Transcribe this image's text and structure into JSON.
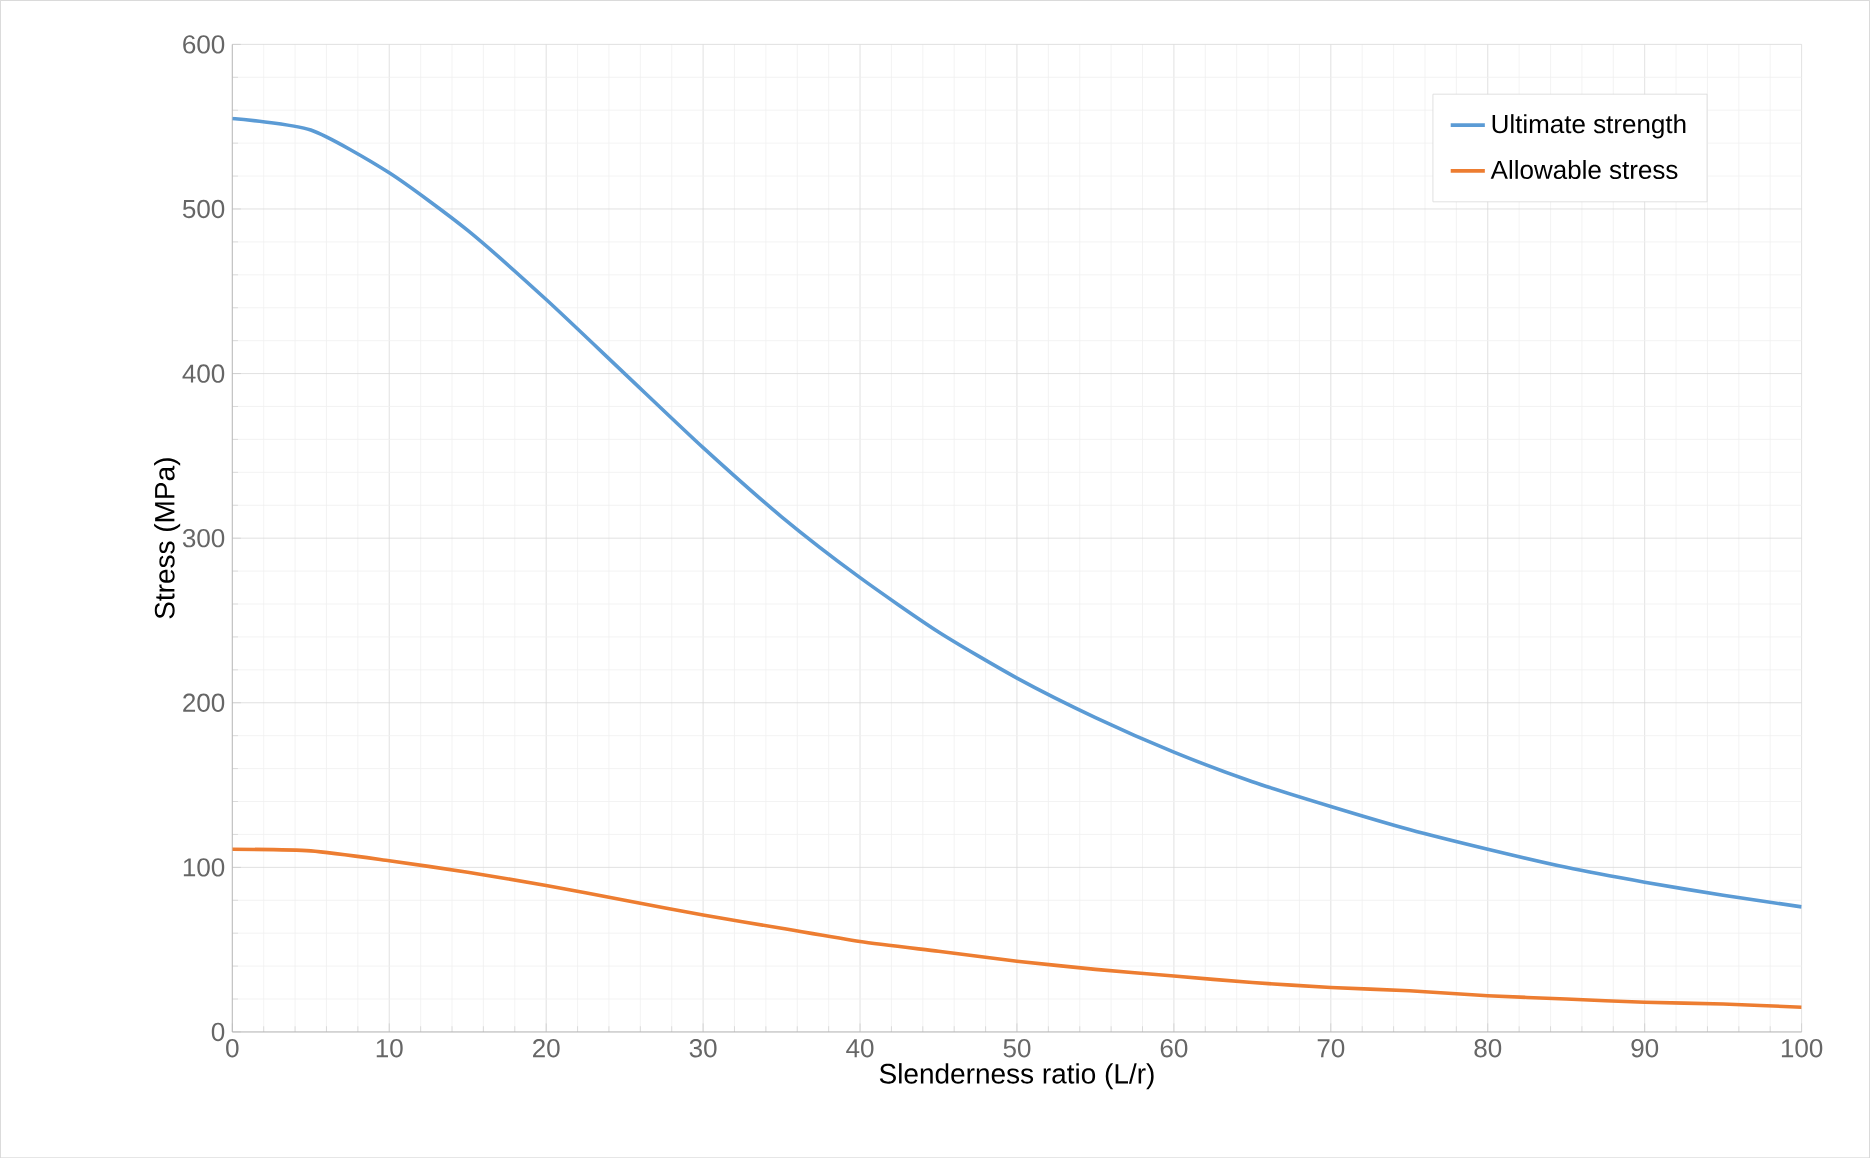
{
  "chart_data": {
    "type": "line",
    "xlabel": "Slenderness ratio (L/r)",
    "ylabel": "Stress (MPa)",
    "x": [
      0,
      5,
      10,
      15,
      20,
      25,
      30,
      35,
      40,
      45,
      50,
      55,
      60,
      65,
      70,
      75,
      80,
      85,
      90,
      95,
      100
    ],
    "series": [
      {
        "name": "Ultimate strength",
        "color": "#5b9bd5",
        "values": [
          555,
          548,
          522,
          487,
          445,
          400,
          355,
          313,
          276,
          243,
          215,
          191,
          170,
          152,
          137,
          123,
          111,
          100,
          91,
          83,
          76
        ]
      },
      {
        "name": "Allowable stress",
        "color": "#ed7d31",
        "values": [
          111,
          110,
          104,
          97,
          89,
          80,
          71,
          63,
          55,
          49,
          43,
          38,
          34,
          30,
          27,
          25,
          22,
          20,
          18,
          17,
          15
        ]
      }
    ],
    "xlim": [
      0,
      100
    ],
    "xticks": [
      0,
      10,
      20,
      30,
      40,
      50,
      60,
      70,
      80,
      90,
      100
    ],
    "ylim": [
      0,
      600
    ],
    "yticks": [
      0,
      100,
      200,
      300,
      400,
      500,
      600
    ],
    "grid": true,
    "legend": "top right",
    "marker": "none",
    "line_style": "solid"
  }
}
